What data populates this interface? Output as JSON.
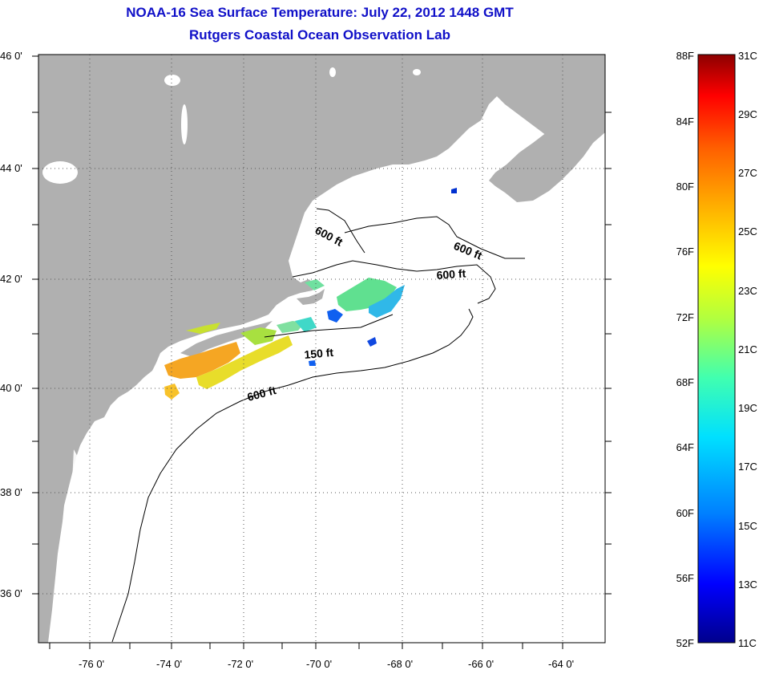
{
  "title": {
    "line1": "NOAA-16 Sea Surface Temperature:  July 22, 2012 1448 GMT",
    "line2": "Rutgers Coastal Ocean Observation Lab"
  },
  "map": {
    "lon_range": [
      -77,
      -63
    ],
    "lat_range": [
      35,
      46
    ],
    "lon_ticks": [
      "-76 0'",
      "-74 0'",
      "-72 0'",
      "-70 0'",
      "-68 0'",
      "-66 0'",
      "-64 0'"
    ],
    "lat_ticks": [
      "46 0'",
      "44 0'",
      "42 0'",
      "40 0'",
      "38 0'",
      "36 0'"
    ],
    "land_color": "#b0b0b0",
    "ocean_color": "#ffffff",
    "grid": "dotted",
    "contour_labels": [
      "600 ft",
      "600 ft",
      "600 ft",
      "150 ft",
      "600 ft"
    ]
  },
  "colorbar": {
    "fahrenheit_labels": [
      "88F",
      "84F",
      "80F",
      "76F",
      "72F",
      "68F",
      "64F",
      "60F",
      "56F",
      "52F"
    ],
    "celsius_labels": [
      "31C",
      "29C",
      "27C",
      "25C",
      "23C",
      "21C",
      "19C",
      "17C",
      "15C",
      "13C",
      "11C"
    ],
    "range_c": [
      11,
      31
    ],
    "colors": [
      "#00008c",
      "#0000ff",
      "#0080ff",
      "#00e0ff",
      "#40ffb0",
      "#b0ff40",
      "#ffff00",
      "#ffb000",
      "#ff6000",
      "#ff0000",
      "#8c0000"
    ]
  }
}
